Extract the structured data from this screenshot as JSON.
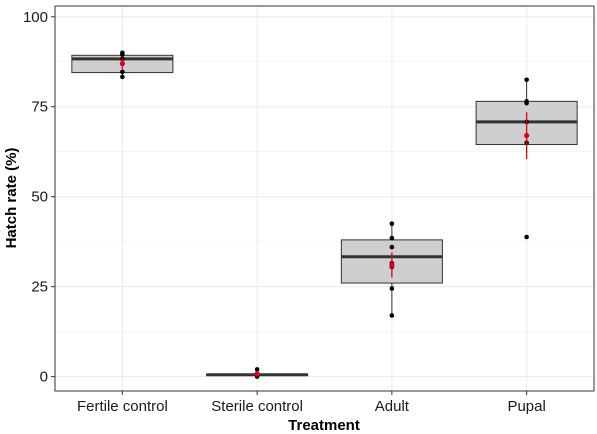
{
  "chart_data": {
    "type": "box",
    "xlabel": "Treatment",
    "ylabel": "Hatch rate (%)",
    "ylim": [
      -4,
      103
    ],
    "yticks": [
      0,
      25,
      50,
      75,
      100
    ],
    "grid": true,
    "categories": [
      "Fertile control",
      "Sterile control",
      "Adult",
      "Pupal"
    ],
    "boxes": [
      {
        "category": "Fertile control",
        "q1": 84.5,
        "median": 88.3,
        "q3": 89.3,
        "whisker_low": 83.3,
        "whisker_high": 90.0
      },
      {
        "category": "Sterile control",
        "q1": 0.3,
        "median": 0.5,
        "q3": 0.7,
        "whisker_low": 0.0,
        "whisker_high": 0.7
      },
      {
        "category": "Adult",
        "q1": 26.0,
        "median": 33.3,
        "q3": 38.0,
        "whisker_low": 17.0,
        "whisker_high": 42.5
      },
      {
        "category": "Pupal",
        "q1": 64.5,
        "median": 70.8,
        "q3": 76.5,
        "whisker_low": 64.5,
        "whisker_high": 82.5
      }
    ],
    "points": [
      {
        "category": "Fertile control",
        "values": [
          90.0,
          89.5,
          88.3,
          84.7,
          83.3
        ]
      },
      {
        "category": "Sterile control",
        "values": [
          2.0,
          0.5,
          0.0
        ]
      },
      {
        "category": "Adult",
        "values": [
          42.5,
          38.5,
          36.0,
          31.5,
          30.5,
          24.5,
          17.0
        ]
      },
      {
        "category": "Pupal",
        "values": [
          82.5,
          76.5,
          76.0,
          70.8,
          65.0,
          38.8
        ]
      }
    ],
    "means": [
      {
        "category": "Fertile control",
        "mean": 87.0,
        "error": 1.5
      },
      {
        "category": "Sterile control",
        "mean": 0.8,
        "error": 0.5
      },
      {
        "category": "Adult",
        "mean": 31.0,
        "error": 3.5
      },
      {
        "category": "Pupal",
        "mean": 67.0,
        "error": 6.5
      }
    ],
    "colors": {
      "box_fill": "#cfcfd1",
      "box_stroke": "#333333",
      "median": "#333333",
      "point": "#000000",
      "mean": "#e3000f",
      "grid": "#ebebeb",
      "panel_border": "#333333"
    }
  }
}
